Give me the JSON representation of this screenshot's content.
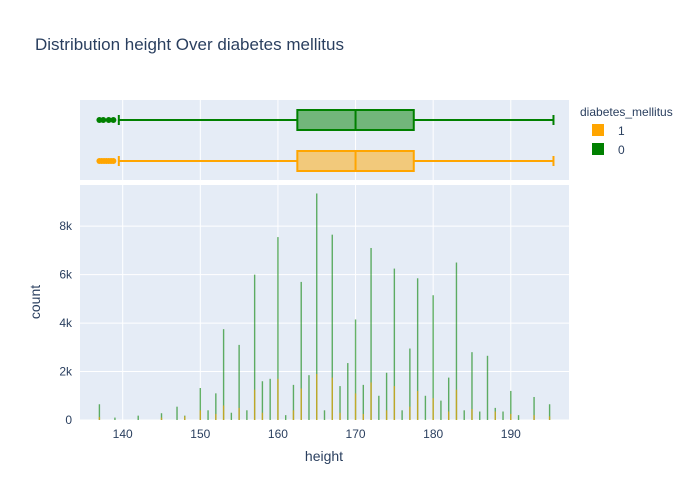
{
  "chart_data": {
    "type": "bar",
    "title": "Distribution height Over diabetes mellitus",
    "xlabel": "height",
    "ylabel": "count",
    "xlim": [
      134.5,
      197.5
    ],
    "ylim": [
      0,
      9700
    ],
    "x_ticks": [
      140,
      150,
      160,
      170,
      180,
      190
    ],
    "x_tick_labels": [
      "140",
      "150",
      "160",
      "170",
      "180",
      "190"
    ],
    "y_ticks": [
      0,
      2000,
      4000,
      6000,
      8000
    ],
    "y_tick_labels": [
      "0",
      "2k",
      "4k",
      "6k",
      "8k"
    ],
    "grid": true,
    "barmode": "overlay",
    "legend": {
      "title": "diabetes_mellitus",
      "position": "right",
      "items": [
        {
          "label": "1",
          "color": "#FFA500"
        },
        {
          "label": "0",
          "color": "#008000"
        }
      ]
    },
    "series": [
      {
        "name": "0",
        "color": "#008000",
        "x": [
          137,
          139,
          142,
          145,
          147,
          148,
          150,
          151,
          152,
          153,
          154,
          155,
          156,
          157,
          158,
          159,
          160,
          161,
          162,
          163,
          164,
          165,
          166,
          167,
          168,
          169,
          170,
          171,
          172,
          173,
          174,
          175,
          176,
          177,
          178,
          179,
          180,
          181,
          182,
          183,
          184,
          185,
          186,
          187,
          188,
          189,
          190,
          191,
          193,
          195
        ],
        "values": [
          650,
          100,
          180,
          280,
          550,
          180,
          1320,
          400,
          1100,
          3750,
          300,
          3100,
          400,
          6000,
          1600,
          1700,
          7550,
          200,
          1450,
          5700,
          1850,
          9350,
          400,
          7650,
          1400,
          2350,
          4150,
          1450,
          7100,
          1000,
          1950,
          6250,
          400,
          2950,
          5850,
          1000,
          5150,
          800,
          1750,
          6500,
          400,
          2800,
          350,
          2650,
          500,
          350,
          1200,
          200,
          950,
          650
        ]
      },
      {
        "name": "1",
        "color": "#FFA500",
        "x": [
          137,
          145,
          148,
          150,
          152,
          153,
          155,
          157,
          158,
          160,
          162,
          163,
          165,
          167,
          168,
          170,
          171,
          172,
          174,
          175,
          177,
          178,
          180,
          182,
          183,
          185,
          188,
          190,
          193,
          195
        ],
        "values": [
          120,
          100,
          150,
          400,
          250,
          600,
          500,
          1250,
          300,
          1700,
          400,
          1300,
          1900,
          1750,
          300,
          1100,
          250,
          1550,
          400,
          1400,
          550,
          1200,
          900,
          350,
          1250,
          450,
          350,
          250,
          200,
          150
        ]
      }
    ],
    "box_plots": [
      {
        "name": "0",
        "color": "#008000",
        "min": 139.5,
        "q1": 162.5,
        "median": 170,
        "q3": 177.5,
        "max": 195.5,
        "outliers": [
          137,
          137.5,
          138.2,
          138.8
        ]
      },
      {
        "name": "1",
        "color": "#FFA500",
        "min": 139.5,
        "q1": 162.5,
        "median": 170,
        "q3": 177.5,
        "max": 195.5,
        "outliers": [
          137,
          137.3,
          137.6,
          137.9,
          138.2,
          138.5,
          138.8
        ]
      }
    ]
  }
}
